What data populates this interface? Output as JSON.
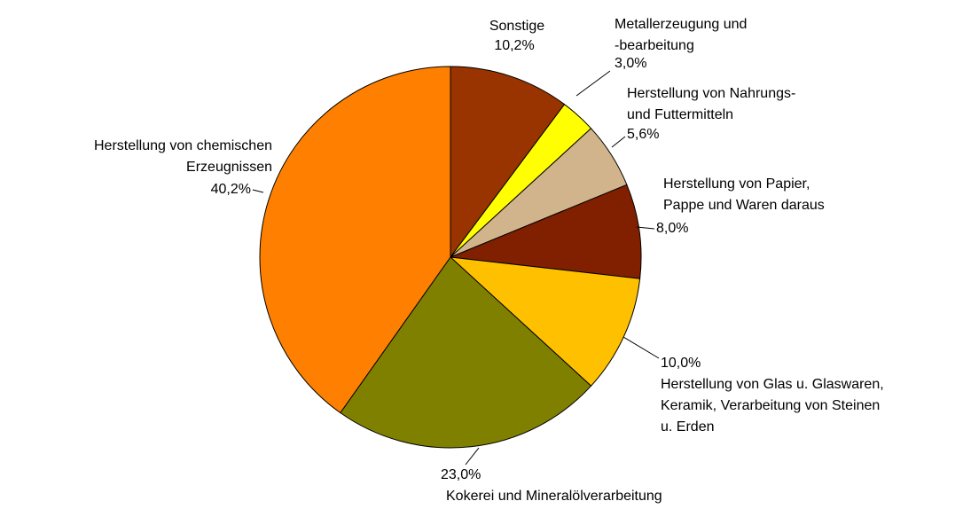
{
  "chart_data": {
    "type": "pie",
    "categories": [
      "Sonstige",
      "Metallerzeugung und\n-bearbeitung",
      "Herstellung von Nahrungs-\nund Futtermitteln",
      "Herstellung von Papier,\nPappe und Waren daraus",
      "Herstellung von Glas u. Glaswaren,\nKeramik, Verarbeitung von Steinen\nu. Erden",
      "Kokerei und Mineralölverarbeitung",
      "Herstellung von chemischen\nErzeugnissen"
    ],
    "values": [
      10.2,
      3.0,
      5.6,
      8.0,
      10.0,
      23.0,
      40.2
    ],
    "value_labels": [
      "10,2%",
      "3,0%",
      "5,6%",
      "8,0%",
      "10,0%",
      "23,0%",
      "40,2%"
    ],
    "colors": [
      "#993300",
      "#ffff00",
      "#d2b48c",
      "#802000",
      "#ffc000",
      "#808000",
      "#ff8000"
    ]
  }
}
